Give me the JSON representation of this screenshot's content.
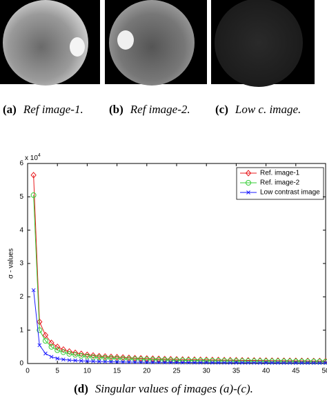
{
  "captions": [
    {
      "label": "(a)",
      "text": "Ref image-1."
    },
    {
      "label": "(b)",
      "text": "Ref image-2."
    },
    {
      "label": "(c)",
      "text": "Low c. image."
    },
    {
      "label": "(d)",
      "text": "Singular values of images (a)-(c)."
    }
  ],
  "chart_data": {
    "type": "line",
    "y_label": "σ - values",
    "y_scale": {
      "text": "x 10",
      "exponent": "4"
    },
    "x": [
      1,
      2,
      3,
      4,
      5,
      6,
      7,
      8,
      9,
      10,
      11,
      12,
      13,
      14,
      15,
      16,
      17,
      18,
      19,
      20,
      21,
      22,
      23,
      24,
      25,
      26,
      27,
      28,
      29,
      30,
      31,
      32,
      33,
      34,
      35,
      36,
      37,
      38,
      39,
      40,
      41,
      42,
      43,
      44,
      45,
      46,
      47,
      48,
      49,
      50
    ],
    "series": [
      {
        "name": "Ref. image-1",
        "color": "#e8191c",
        "marker": "diamond",
        "values": [
          5.65,
          1.25,
          0.85,
          0.62,
          0.5,
          0.42,
          0.36,
          0.32,
          0.29,
          0.26,
          0.24,
          0.22,
          0.21,
          0.2,
          0.19,
          0.18,
          0.17,
          0.16,
          0.155,
          0.15,
          0.145,
          0.14,
          0.135,
          0.13,
          0.125,
          0.12,
          0.118,
          0.115,
          0.112,
          0.11,
          0.107,
          0.105,
          0.102,
          0.1,
          0.098,
          0.096,
          0.094,
          0.092,
          0.09,
          0.088,
          0.086,
          0.085,
          0.083,
          0.082,
          0.08,
          0.079,
          0.078,
          0.076,
          0.075,
          0.074
        ]
      },
      {
        "name": "Ref. image-2",
        "color": "#33cc33",
        "marker": "circle",
        "values": [
          5.05,
          1.0,
          0.68,
          0.5,
          0.4,
          0.34,
          0.29,
          0.26,
          0.23,
          0.21,
          0.19,
          0.18,
          0.17,
          0.16,
          0.15,
          0.14,
          0.135,
          0.13,
          0.125,
          0.12,
          0.115,
          0.11,
          0.106,
          0.102,
          0.099,
          0.096,
          0.093,
          0.09,
          0.088,
          0.086,
          0.084,
          0.082,
          0.08,
          0.078,
          0.076,
          0.074,
          0.073,
          0.071,
          0.07,
          0.068,
          0.067,
          0.066,
          0.065,
          0.064,
          0.063,
          0.062,
          0.061,
          0.06,
          0.059,
          0.058
        ]
      },
      {
        "name": "Low contrast image",
        "color": "#1a1aff",
        "marker": "x",
        "values": [
          2.2,
          0.55,
          0.3,
          0.2,
          0.15,
          0.12,
          0.1,
          0.09,
          0.08,
          0.072,
          0.066,
          0.06,
          0.056,
          0.052,
          0.049,
          0.046,
          0.044,
          0.042,
          0.04,
          0.038,
          0.036,
          0.035,
          0.034,
          0.033,
          0.032,
          0.031,
          0.03,
          0.029,
          0.028,
          0.027,
          0.026,
          0.026,
          0.025,
          0.024,
          0.024,
          0.023,
          0.022,
          0.022,
          0.021,
          0.021,
          0.02,
          0.02,
          0.019,
          0.019,
          0.018,
          0.018,
          0.018,
          0.017,
          0.017,
          0.016
        ]
      }
    ],
    "xlim": [
      0,
      50
    ],
    "xticks": [
      0,
      5,
      10,
      15,
      20,
      25,
      30,
      35,
      40,
      45,
      50
    ],
    "ylim": [
      0,
      6
    ],
    "yticks": [
      0,
      1,
      2,
      3,
      4,
      5,
      6
    ],
    "legend": "upper right"
  }
}
